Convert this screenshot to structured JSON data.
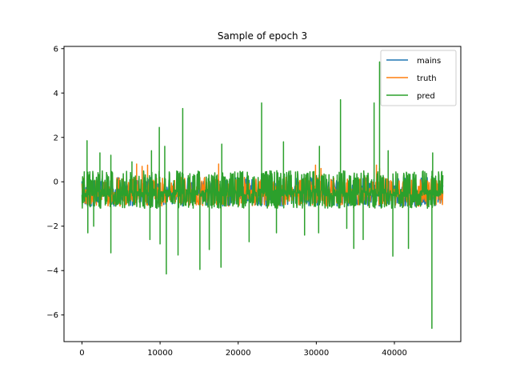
{
  "chart_data": {
    "type": "line",
    "title": "Sample of epoch 3",
    "xlabel": "",
    "ylabel": "",
    "xlim": [
      -2300,
      48500
    ],
    "ylim": [
      -7.2,
      6.1
    ],
    "x_ticks": [
      0,
      10000,
      20000,
      30000,
      40000
    ],
    "x_tick_labels": [
      "0",
      "10000",
      "20000",
      "30000",
      "40000"
    ],
    "y_ticks": [
      -6,
      -4,
      -2,
      0,
      2,
      4,
      6
    ],
    "y_tick_labels": [
      "−6",
      "−4",
      "−2",
      "0",
      "2",
      "4",
      "6"
    ],
    "grid": false,
    "legend_position": "top-right",
    "x_range": [
      0,
      46200
    ],
    "series": [
      {
        "name": "mains",
        "color": "#1f77b4",
        "baseline": -0.5,
        "band": [
          -1.1,
          0.2
        ],
        "note_hidden_under_pred": true
      },
      {
        "name": "truth",
        "color": "#ff7f0e",
        "baseline": -0.5,
        "band": [
          -1.1,
          0.2
        ],
        "spikes": [
          [
            7000,
            0.8
          ],
          [
            7700,
            0.7
          ],
          [
            8400,
            0.75
          ],
          [
            17500,
            0.8
          ],
          [
            20800,
            0.2
          ],
          [
            29900,
            0.75
          ],
          [
            30600,
            0.6
          ],
          [
            37700,
            0.75
          ],
          [
            38100,
            0.6
          ]
        ]
      },
      {
        "name": "pred",
        "color": "#2ca02c",
        "baseline": -0.5,
        "band": [
          -1.2,
          0.5
        ],
        "spikes_up": [
          [
            650,
            1.85
          ],
          [
            2300,
            1.3
          ],
          [
            3700,
            1.2
          ],
          [
            6400,
            0.9
          ],
          [
            8900,
            1.4
          ],
          [
            9900,
            2.45
          ],
          [
            10600,
            1.6
          ],
          [
            12900,
            3.3
          ],
          [
            17900,
            1.7
          ],
          [
            23000,
            3.55
          ],
          [
            25800,
            1.8
          ],
          [
            30400,
            1.6
          ],
          [
            33100,
            3.7
          ],
          [
            37400,
            3.55
          ],
          [
            38100,
            5.4
          ],
          [
            39200,
            1.4
          ],
          [
            44900,
            1.3
          ]
        ],
        "spikes_down": [
          [
            750,
            -2.3
          ],
          [
            1500,
            -2.0
          ],
          [
            3700,
            -3.2
          ],
          [
            8700,
            -2.6
          ],
          [
            10000,
            -2.8
          ],
          [
            10800,
            -4.15
          ],
          [
            12300,
            -3.3
          ],
          [
            15100,
            -3.95
          ],
          [
            16300,
            -3.05
          ],
          [
            17800,
            -3.85
          ],
          [
            21400,
            -2.7
          ],
          [
            24900,
            -2.3
          ],
          [
            28500,
            -2.4
          ],
          [
            30300,
            -2.3
          ],
          [
            33900,
            -2.1
          ],
          [
            34800,
            -3.0
          ],
          [
            36000,
            -2.6
          ],
          [
            39800,
            -3.35
          ],
          [
            41800,
            -3.0
          ],
          [
            44800,
            -6.6
          ]
        ]
      }
    ]
  }
}
